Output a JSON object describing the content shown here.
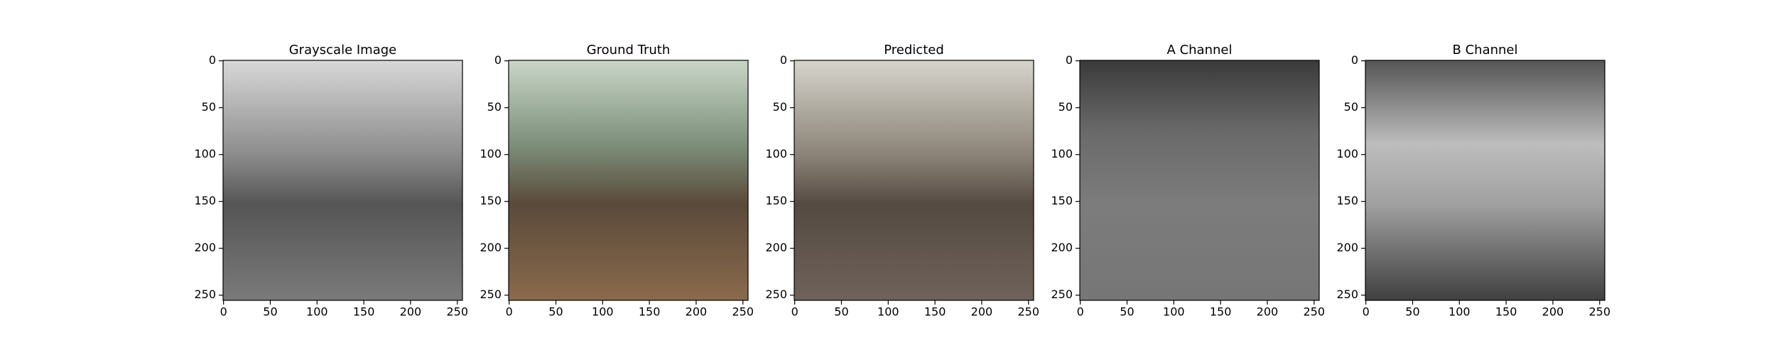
{
  "chart_data": [
    {
      "type": "image",
      "title": "Grayscale Image",
      "xlim": [
        -0.5,
        255.5
      ],
      "ylim": [
        255.5,
        -0.5
      ],
      "xticks": [
        0,
        50,
        100,
        150,
        200,
        250
      ],
      "yticks": [
        0,
        50,
        100,
        150,
        200,
        250
      ]
    },
    {
      "type": "image",
      "title": "Ground Truth",
      "xlim": [
        -0.5,
        255.5
      ],
      "ylim": [
        255.5,
        -0.5
      ],
      "xticks": [
        0,
        50,
        100,
        150,
        200,
        250
      ],
      "yticks": [
        0,
        50,
        100,
        150,
        200,
        250
      ]
    },
    {
      "type": "image",
      "title": "Predicted",
      "xlim": [
        -0.5,
        255.5
      ],
      "ylim": [
        255.5,
        -0.5
      ],
      "xticks": [
        0,
        50,
        100,
        150,
        200,
        250
      ],
      "yticks": [
        0,
        50,
        100,
        150,
        200,
        250
      ]
    },
    {
      "type": "image",
      "title": "A Channel",
      "xlim": [
        -0.5,
        255.5
      ],
      "ylim": [
        255.5,
        -0.5
      ],
      "xticks": [
        0,
        50,
        100,
        150,
        200,
        250
      ],
      "yticks": [
        0,
        50,
        100,
        150,
        200,
        250
      ]
    },
    {
      "type": "image",
      "title": "B Channel",
      "xlim": [
        -0.5,
        255.5
      ],
      "ylim": [
        255.5,
        -0.5
      ],
      "xticks": [
        0,
        50,
        100,
        150,
        200,
        250
      ],
      "yticks": [
        0,
        50,
        100,
        150,
        200,
        250
      ]
    }
  ]
}
